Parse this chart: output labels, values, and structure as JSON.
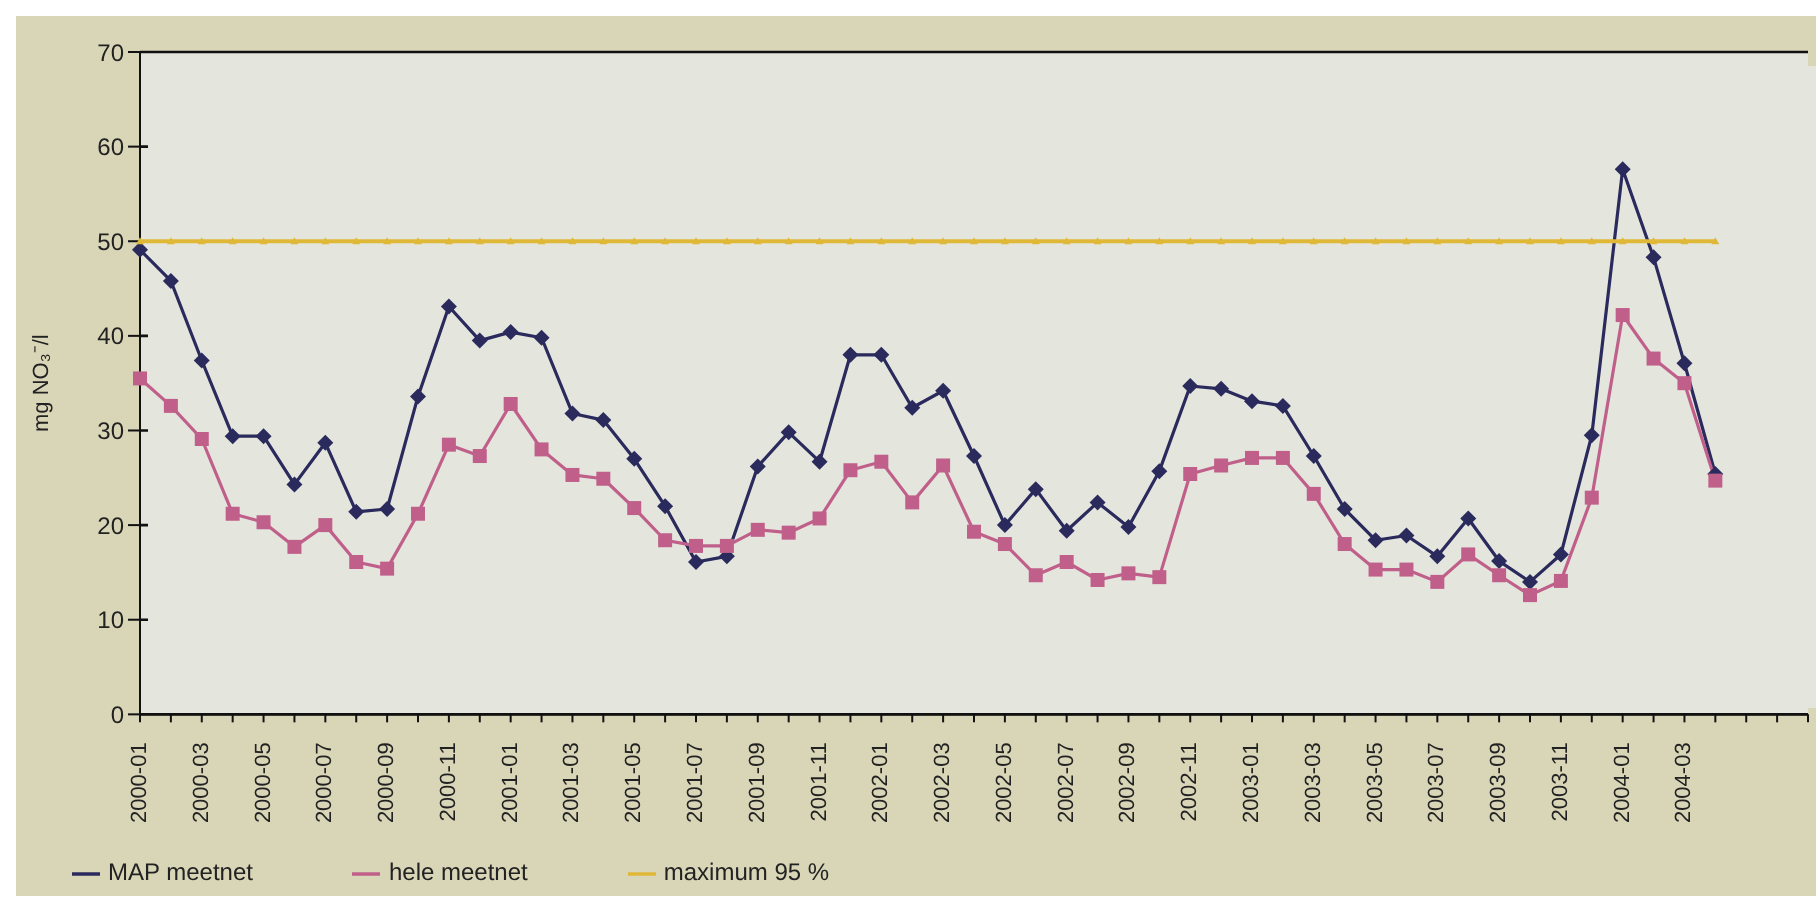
{
  "chart_data": {
    "type": "line",
    "ylabel": "mg NO₃⁻/l",
    "categories": [
      "2000-01",
      null,
      "2000-03",
      null,
      "2000-05",
      null,
      "2000-07",
      null,
      "2000-09",
      null,
      "2000-11",
      null,
      "2001-01",
      null,
      "2001-03",
      null,
      "2001-05",
      null,
      "2001-07",
      null,
      "2001-09",
      null,
      "2001-11",
      null,
      "2002-01",
      null,
      "2002-03",
      null,
      "2002-05",
      null,
      "2002-07",
      null,
      "2002-09",
      null,
      "2002-11",
      null,
      "2003-01",
      null,
      "2003-03",
      null,
      "2003-05",
      null,
      "2003-07",
      null,
      "2003-09",
      null,
      "2003-11",
      null,
      "2004-01",
      null,
      "2004-03",
      null,
      null,
      null,
      null
    ],
    "series": [
      {
        "name": "MAP meetnet",
        "color": "#2a2a5c",
        "marker": "diamond",
        "values": [
          49.1,
          45.8,
          37.4,
          29.4,
          29.4,
          24.3,
          28.7,
          21.4,
          21.7,
          33.6,
          43.1,
          39.5,
          40.4,
          39.8,
          31.8,
          31.1,
          27.0,
          22.0,
          16.1,
          16.7,
          26.2,
          29.8,
          26.7,
          38.0,
          38.0,
          32.4,
          34.2,
          27.3,
          20.0,
          23.8,
          19.4,
          22.4,
          19.8,
          25.7,
          34.7,
          34.4,
          33.1,
          32.6,
          27.3,
          21.7,
          18.4,
          18.9,
          16.7,
          20.7,
          16.2,
          14.0,
          16.9,
          29.5,
          57.6,
          48.3,
          37.1,
          25.4,
          null,
          null,
          null
        ]
      },
      {
        "name": "hele meetnet",
        "color": "#c0608a",
        "marker": "square",
        "values": [
          35.5,
          32.6,
          29.1,
          21.2,
          20.3,
          17.7,
          20.0,
          16.1,
          15.4,
          21.2,
          28.5,
          27.3,
          32.8,
          28.0,
          25.3,
          24.9,
          21.8,
          18.4,
          17.8,
          17.8,
          19.5,
          19.2,
          20.7,
          25.8,
          26.7,
          22.4,
          26.3,
          19.3,
          18.0,
          14.7,
          16.1,
          14.2,
          14.9,
          14.5,
          25.4,
          26.3,
          27.1,
          27.1,
          23.3,
          18.0,
          15.3,
          15.3,
          14.0,
          16.9,
          14.7,
          12.6,
          14.1,
          22.9,
          42.2,
          37.6,
          35.0,
          24.7,
          null,
          null,
          null
        ]
      },
      {
        "name": "maximum 95 %",
        "color": "#e0b838",
        "marker": "triangle",
        "values": [
          50,
          50,
          50,
          50,
          50,
          50,
          50,
          50,
          50,
          50,
          50,
          50,
          50,
          50,
          50,
          50,
          50,
          50,
          50,
          50,
          50,
          50,
          50,
          50,
          50,
          50,
          50,
          50,
          50,
          50,
          50,
          50,
          50,
          50,
          50,
          50,
          50,
          50,
          50,
          50,
          50,
          50,
          50,
          50,
          50,
          50,
          50,
          50,
          50,
          50,
          50,
          50,
          null,
          null,
          null
        ]
      }
    ],
    "ylim": [
      0,
      70
    ],
    "yticks": [
      0,
      10,
      20,
      30,
      40,
      50,
      60,
      70
    ],
    "grid": "y",
    "legend": "bottom left"
  }
}
